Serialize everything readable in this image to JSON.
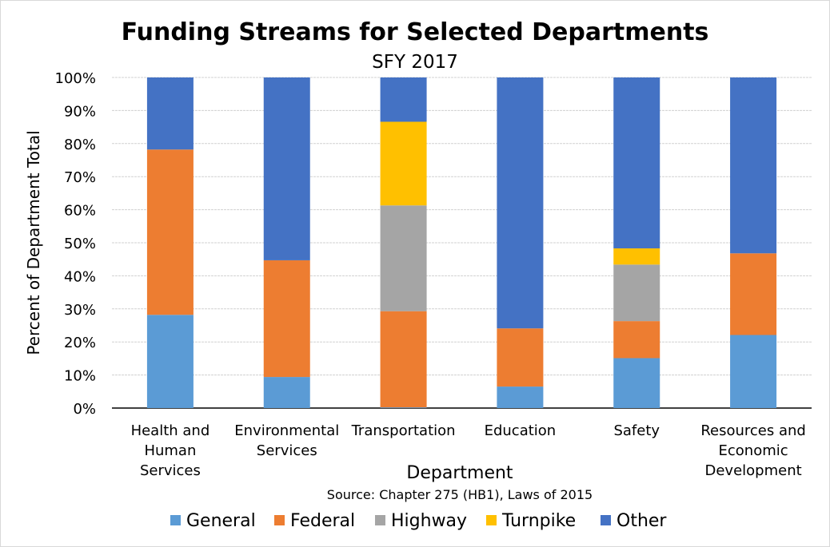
{
  "chart_data": {
    "type": "bar",
    "stacked": "percent",
    "title": "Funding Streams for Selected Departments",
    "subtitle": "SFY 2017",
    "xlabel": "Department",
    "ylabel": "Percent of Department Total",
    "source": "Source: Chapter 275 (HB1), Laws of 2015",
    "ylim": [
      0,
      100
    ],
    "yticks": [
      "0%",
      "10%",
      "20%",
      "30%",
      "40%",
      "50%",
      "60%",
      "70%",
      "80%",
      "90%",
      "100%"
    ],
    "grid": true,
    "legend_position": "bottom",
    "categories": [
      [
        "Health and",
        "Human",
        "Services"
      ],
      [
        "Environmental",
        "Services"
      ],
      [
        "Transportation"
      ],
      [
        "Education"
      ],
      [
        "Safety"
      ],
      [
        "Resources and",
        "Economic",
        "Development"
      ]
    ],
    "series": [
      {
        "name": "General",
        "color": "#5B9BD5",
        "values": [
          28.2,
          9.4,
          0.2,
          6.5,
          15.1,
          22.1
        ]
      },
      {
        "name": "Federal",
        "color": "#ED7D31",
        "values": [
          50.0,
          35.3,
          29.1,
          17.6,
          11.2,
          24.7
        ]
      },
      {
        "name": "Highway",
        "color": "#A5A5A5",
        "values": [
          0,
          0,
          32.0,
          0,
          17.1,
          0
        ]
      },
      {
        "name": "Turnpike",
        "color": "#FFC000",
        "values": [
          0,
          0,
          25.3,
          0,
          4.9,
          0
        ]
      },
      {
        "name": "Other",
        "color": "#4472C4",
        "values": [
          21.8,
          55.3,
          13.4,
          75.9,
          51.7,
          53.2
        ]
      }
    ]
  }
}
